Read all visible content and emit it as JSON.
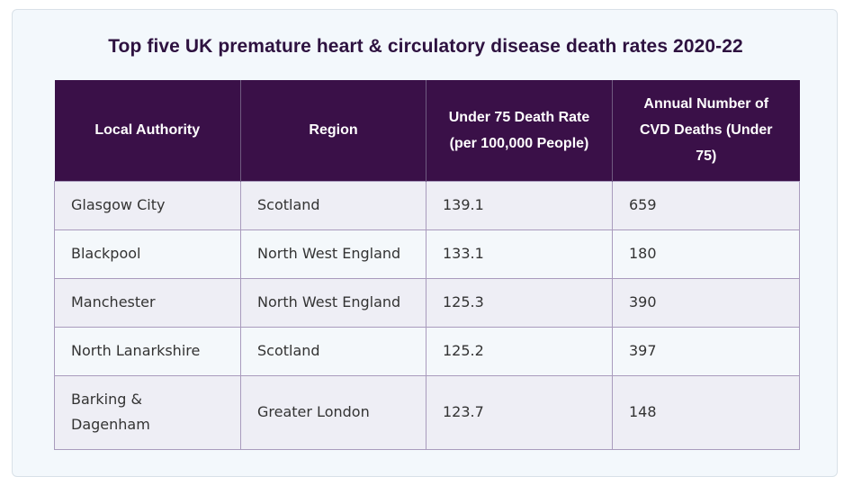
{
  "title": "Top five UK premature heart & circulatory disease death rates 2020-22",
  "table": {
    "headers": [
      "Local Authority",
      "Region",
      "Under 75 Death Rate (per 100,000 People)",
      "Annual Number of CVD Deaths (Under 75)"
    ],
    "rows": [
      [
        "Glasgow City",
        "Scotland",
        "139.1",
        "659"
      ],
      [
        "Blackpool",
        "North West England",
        "133.1",
        "180"
      ],
      [
        "Manchester",
        "North West England",
        "125.3",
        "390"
      ],
      [
        "North Lanarkshire",
        "Scotland",
        "125.2",
        "397"
      ],
      [
        "Barking & Dagenham",
        "Greater London",
        "123.7",
        "148"
      ]
    ]
  },
  "colors": {
    "header_bg": "#3a1048",
    "title": "#2e1240",
    "card_bg": "#f3f8fc"
  }
}
